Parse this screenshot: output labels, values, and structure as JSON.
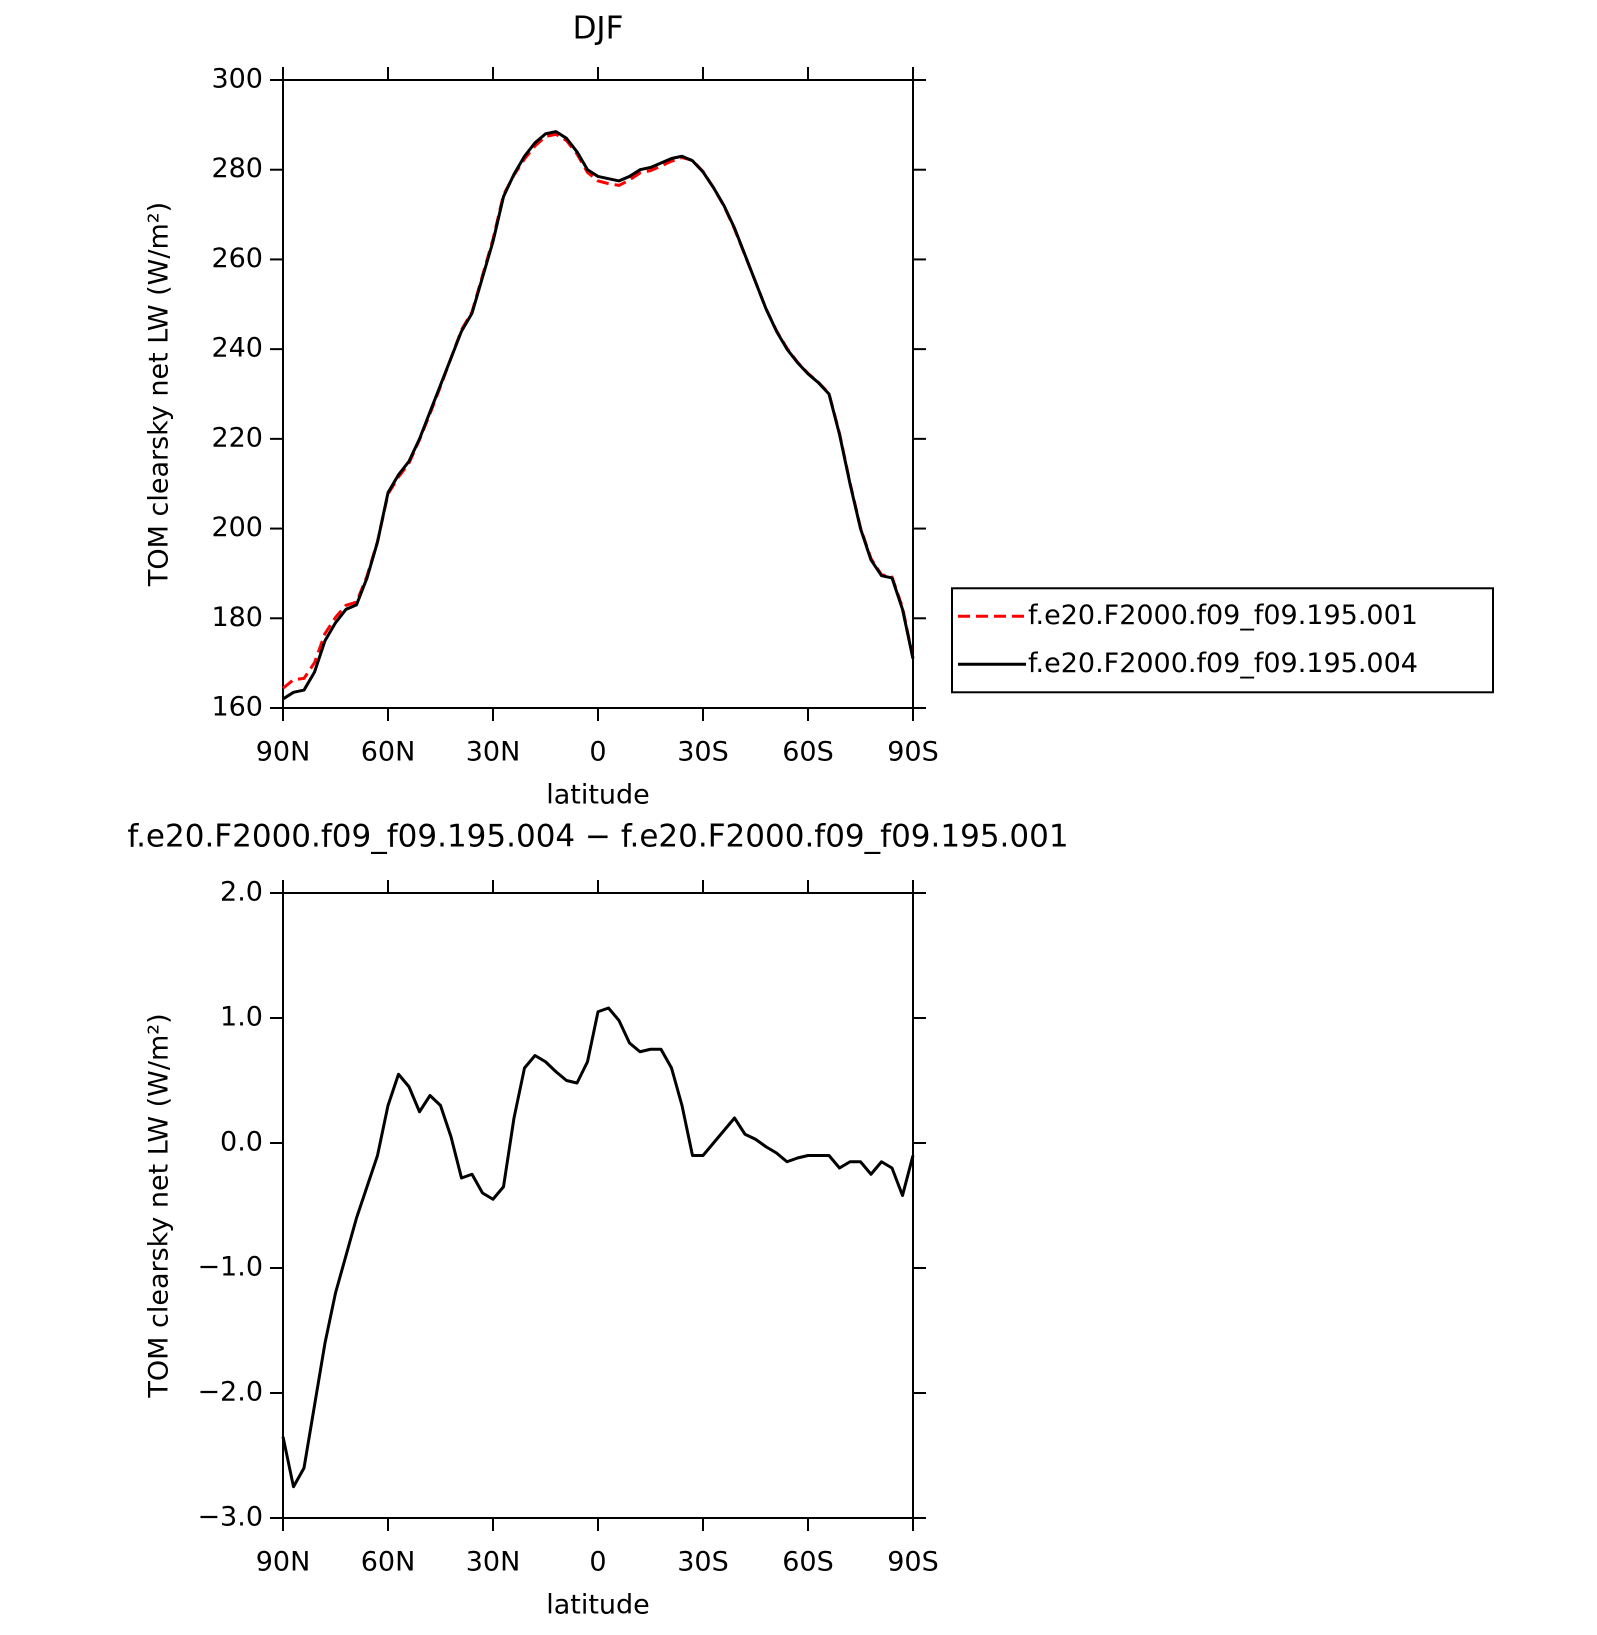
{
  "chart_data": [
    {
      "type": "line",
      "title": "DJF",
      "x_label": "latitude",
      "y_label": "TOM clearsky net LW (W/m²)",
      "x": [
        90,
        87,
        84,
        81,
        78,
        75,
        72,
        69,
        66,
        63,
        60,
        57,
        54,
        51,
        48,
        45,
        42,
        39,
        36,
        33,
        30,
        27,
        24,
        21,
        18,
        15,
        12,
        9,
        6,
        3,
        0,
        -3,
        -6,
        -9,
        -12,
        -15,
        -18,
        -21,
        -24,
        -27,
        -30,
        -33,
        -36,
        -39,
        -42,
        -45,
        -48,
        -51,
        -54,
        -57,
        -60,
        -63,
        -66,
        -69,
        -72,
        -75,
        -78,
        -81,
        -84,
        -87,
        -90
      ],
      "xlim": [
        90,
        -90
      ],
      "xticks": [
        {
          "value": 90,
          "label": "90N"
        },
        {
          "value": 60,
          "label": "60N"
        },
        {
          "value": 30,
          "label": "30N"
        },
        0,
        {
          "value": -30,
          "label": "30S"
        },
        {
          "value": -60,
          "label": "60S"
        },
        {
          "value": -90,
          "label": "90S"
        }
      ],
      "ylim": [
        160,
        300
      ],
      "yticks": [
        160,
        180,
        200,
        220,
        240,
        260,
        280,
        300
      ],
      "legend": "right",
      "series": [
        {
          "name": "f.e20.F2000.f09_f09.195.001",
          "color": "#ff0000",
          "dash": "dashed",
          "values": [
            164.4,
            166.3,
            166.6,
            170.1,
            176.6,
            180.2,
            182.9,
            183.6,
            189.4,
            197.1,
            207.7,
            211.5,
            214.6,
            219.8,
            225.6,
            231.7,
            238.0,
            244.3,
            248.3,
            256.4,
            264.5,
            274.4,
            278.8,
            282.4,
            285.3,
            287.4,
            287.9,
            286.5,
            283.5,
            279.4,
            277.5,
            276.9,
            276.5,
            277.7,
            279.3,
            279.8,
            280.8,
            281.9,
            282.7,
            282.1,
            279.6,
            276.0,
            271.9,
            266.8,
            260.9,
            255.0,
            249.0,
            244.1,
            240.2,
            237.1,
            234.6,
            232.6,
            230.1,
            221.2,
            210.2,
            200.2,
            193.3,
            189.7,
            189.2,
            182.4,
            171.1
          ]
        },
        {
          "name": "f.e20.F2000.f09_f09.195.004",
          "color": "#000000",
          "dash": "solid",
          "values": [
            162,
            163.5,
            164,
            168,
            175,
            179,
            182,
            183,
            189,
            197,
            208,
            212,
            215,
            220,
            226,
            232,
            238,
            244,
            248,
            256,
            264,
            274,
            279,
            283,
            286,
            288,
            288.5,
            287,
            284,
            280,
            278.5,
            278,
            277.5,
            278.5,
            280,
            280.5,
            281.5,
            282.5,
            283,
            282,
            279.5,
            276,
            272,
            267,
            261,
            255,
            249,
            244,
            240,
            237,
            234.5,
            232.5,
            230,
            221,
            210,
            200,
            193,
            189.5,
            189,
            182,
            171
          ]
        }
      ]
    },
    {
      "type": "line",
      "title": "f.e20.F2000.f09_f09.195.004 − f.e20.F2000.f09_f09.195.001",
      "x_label": "latitude",
      "y_label": "TOM clearsky net LW (W/m²)",
      "x": [
        90,
        87,
        84,
        81,
        78,
        75,
        72,
        69,
        66,
        63,
        60,
        57,
        54,
        51,
        48,
        45,
        42,
        39,
        36,
        33,
        30,
        27,
        24,
        21,
        18,
        15,
        12,
        9,
        6,
        3,
        0,
        -3,
        -6,
        -9,
        -12,
        -15,
        -18,
        -21,
        -24,
        -27,
        -30,
        -33,
        -36,
        -39,
        -42,
        -45,
        -48,
        -51,
        -54,
        -57,
        -60,
        -63,
        -66,
        -69,
        -72,
        -75,
        -78,
        -81,
        -84,
        -87,
        -90
      ],
      "xlim": [
        90,
        -90
      ],
      "xticks": [
        {
          "value": 90,
          "label": "90N"
        },
        {
          "value": 60,
          "label": "60N"
        },
        {
          "value": 30,
          "label": "30N"
        },
        0,
        {
          "value": -30,
          "label": "30S"
        },
        {
          "value": -60,
          "label": "60S"
        },
        {
          "value": -90,
          "label": "90S"
        }
      ],
      "ylim": [
        -3,
        2
      ],
      "yticks": [
        {
          "value": -3,
          "label": "−3.0"
        },
        {
          "value": -2,
          "label": "−2.0"
        },
        {
          "value": -1,
          "label": "−1.0"
        },
        {
          "value": 0,
          "label": "0.0"
        },
        {
          "value": 1,
          "label": "1.0"
        },
        {
          "value": 2,
          "label": "2.0"
        }
      ],
      "color": "#000000",
      "values": [
        -2.35,
        -2.75,
        -2.6,
        -2.1,
        -1.6,
        -1.2,
        -0.9,
        -0.6,
        -0.35,
        -0.1,
        0.3,
        0.55,
        0.45,
        0.25,
        0.38,
        0.3,
        0.05,
        -0.28,
        -0.25,
        -0.4,
        -0.45,
        -0.35,
        0.2,
        0.6,
        0.7,
        0.65,
        0.57,
        0.5,
        0.48,
        0.65,
        1.05,
        1.08,
        0.98,
        0.8,
        0.73,
        0.75,
        0.75,
        0.6,
        0.3,
        -0.1,
        -0.1,
        0.0,
        0.1,
        0.2,
        0.07,
        0.03,
        -0.03,
        -0.08,
        -0.15,
        -0.12,
        -0.1,
        -0.1,
        -0.1,
        -0.2,
        -0.15,
        -0.15,
        -0.25,
        -0.15,
        -0.2,
        -0.42,
        -0.1
      ]
    }
  ]
}
